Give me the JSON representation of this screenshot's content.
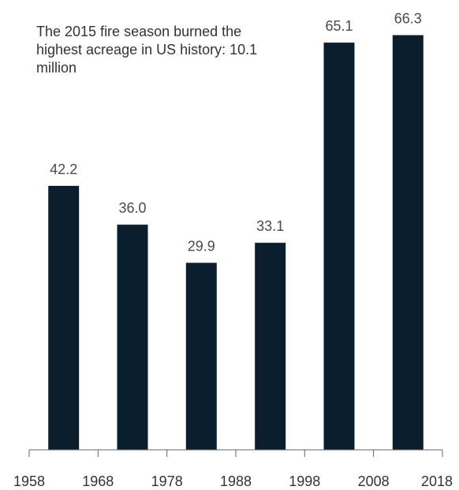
{
  "chart_data": {
    "type": "bar",
    "categories": [
      "1958-1967",
      "1968-1977",
      "1978-1987",
      "1988-1997",
      "1998-2007",
      "2008-2017"
    ],
    "values": [
      42.2,
      36.0,
      29.9,
      33.1,
      65.1,
      66.3
    ],
    "value_labels": [
      "42.2",
      "36.0",
      "29.9",
      "33.1",
      "65.1",
      "66.3"
    ],
    "x_ticks": [
      "1958",
      "1968",
      "1978",
      "1988",
      "1998",
      "2008",
      "2018"
    ],
    "annotation": "The 2015 fire season burned the highest acreage in US history: 10.1 million",
    "title": "",
    "xlabel": "",
    "ylabel": "",
    "ylim": [
      0,
      70
    ],
    "grid": false,
    "legend": "none",
    "colors": {
      "bar": "#0b1e2d",
      "text": "#333333",
      "axis": "#666666"
    }
  }
}
